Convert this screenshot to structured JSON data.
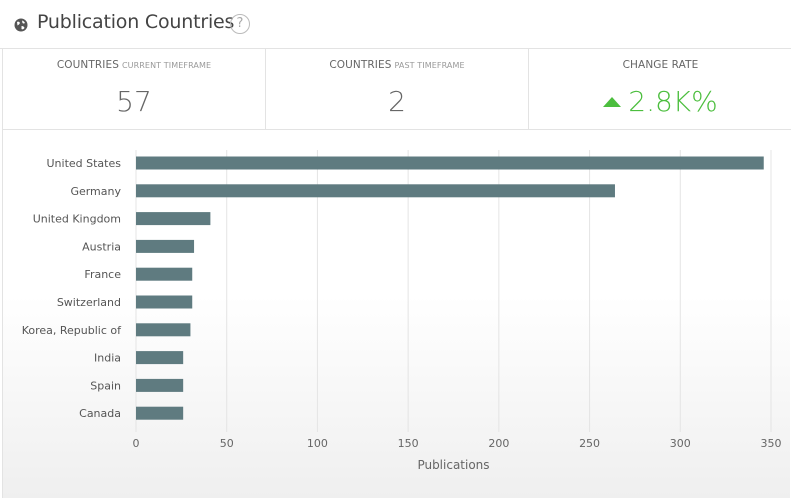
{
  "header": {
    "title": "Publication Countries",
    "help_label": "?"
  },
  "stats": [
    {
      "label": "COUNTRIES",
      "sublabel": "CURRENT TIMEFRAME",
      "value": "57"
    },
    {
      "label": "COUNTRIES",
      "sublabel": "PAST TIMEFRAME",
      "value": "2"
    },
    {
      "label": "CHANGE RATE",
      "sublabel": "",
      "value": "2.8K%"
    }
  ],
  "colors": {
    "bar": "#5f7b80",
    "positive": "#4cbe3e",
    "grid": "#e4e4e4"
  },
  "chart_data": {
    "type": "bar",
    "orientation": "horizontal",
    "categories": [
      "United States",
      "Germany",
      "United Kingdom",
      "Austria",
      "France",
      "Switzerland",
      "Korea, Republic of",
      "India",
      "Spain",
      "Canada"
    ],
    "values": [
      346,
      264,
      41,
      32,
      31,
      31,
      30,
      26,
      26,
      26
    ],
    "xlabel": "Publications",
    "xlim": [
      0,
      350
    ],
    "xticks": [
      0,
      50,
      100,
      150,
      200,
      250,
      300,
      350
    ],
    "grid": true
  }
}
